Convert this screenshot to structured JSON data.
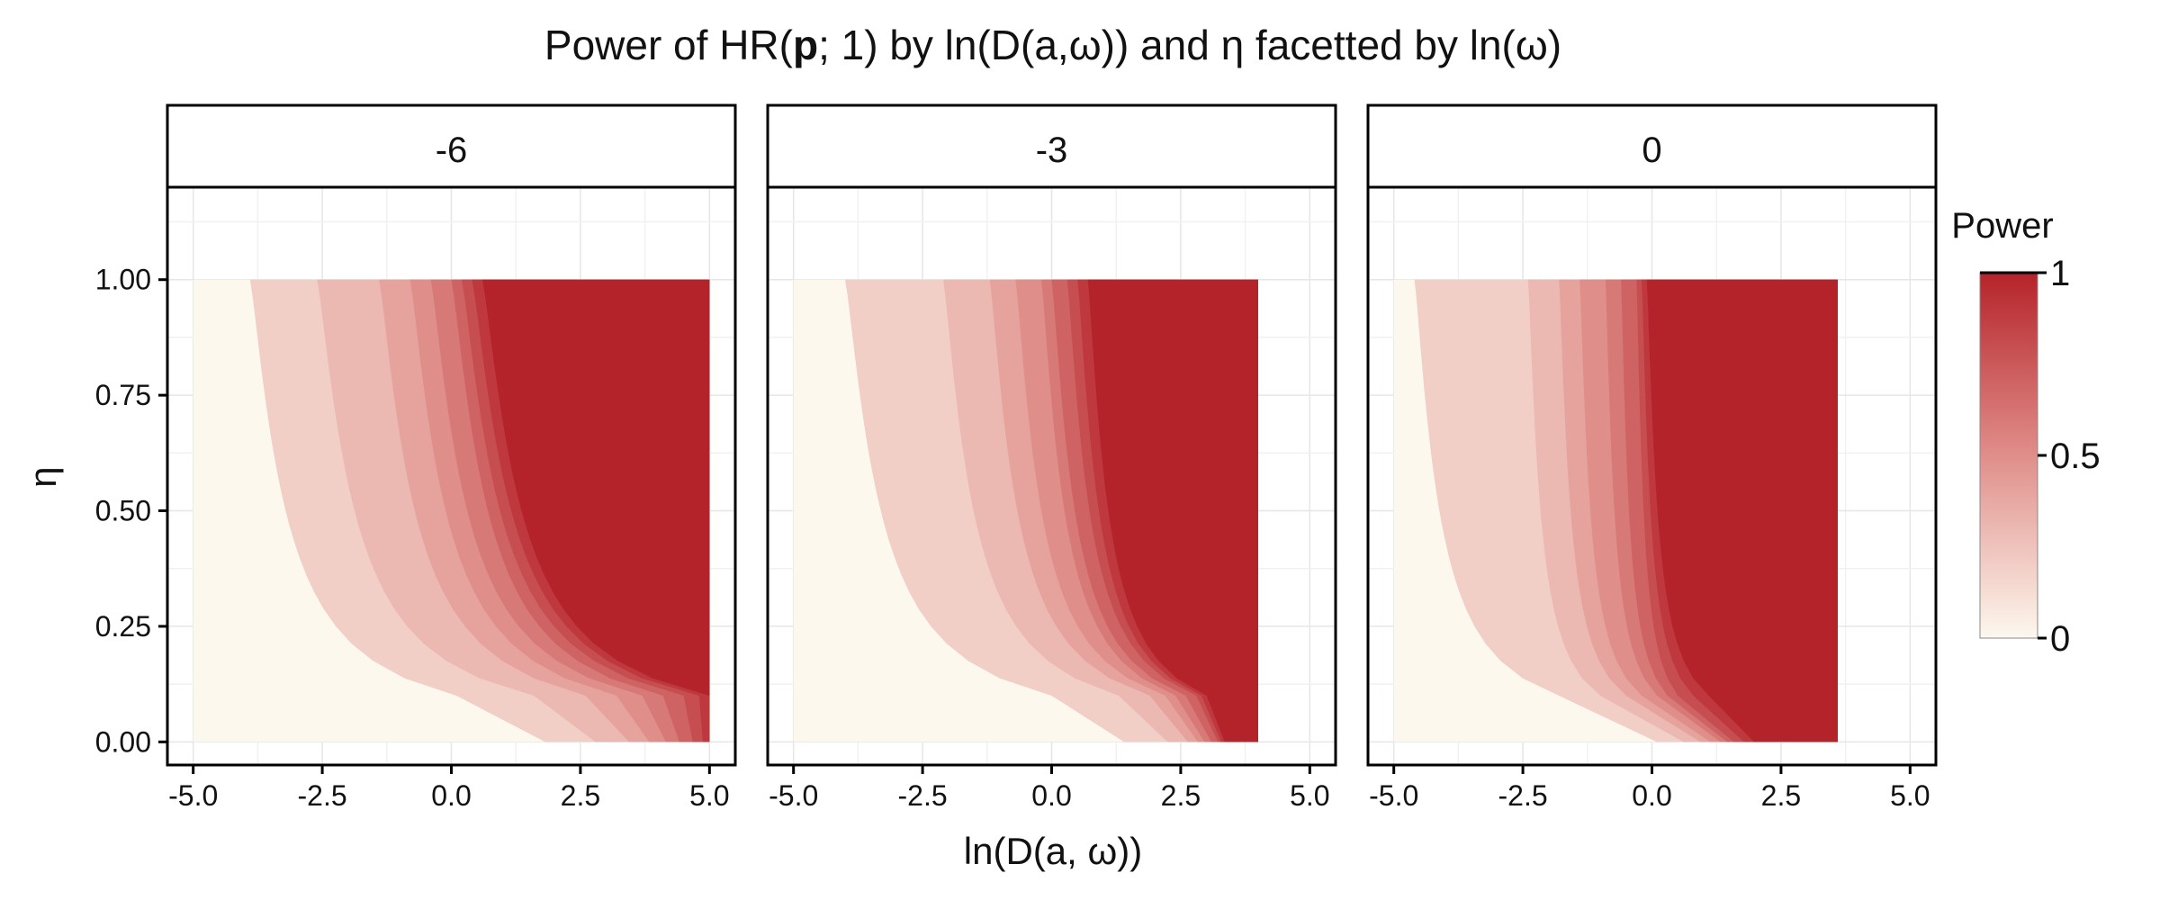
{
  "chart_data": {
    "type": "heatmap",
    "title_parts": {
      "prefix": "Power of HR(",
      "bold": "p",
      "suffix": "; 1) by ln(D(a,ω)) and η facetted by ln(ω)"
    },
    "xlabel": "ln(D(a, ω))",
    "ylabel": "η",
    "xlim": [
      -5.5,
      5.5
    ],
    "ylim": [
      -0.05,
      1.2
    ],
    "x_ticks": [
      -5.0,
      -2.5,
      0.0,
      2.5,
      5.0
    ],
    "x_tick_labels": [
      "-5.0",
      "-2.5",
      "0.0",
      "2.5",
      "5.0"
    ],
    "y_ticks": [
      0.0,
      0.25,
      0.5,
      0.75,
      1.0
    ],
    "y_tick_labels": [
      "0.00",
      "0.25",
      "0.50",
      "0.75",
      "1.00"
    ],
    "legend": {
      "title": "Power",
      "ticks": [
        0,
        0.5,
        1
      ],
      "tick_labels": [
        "0",
        "0.5",
        "1"
      ],
      "low_color": "#fdf8ee",
      "mid_color": "#e08e8a",
      "high_color": "#b5232a"
    },
    "contour_levels": [
      0.1,
      0.2,
      0.3,
      0.4,
      0.5,
      0.6,
      0.7,
      0.8,
      0.9
    ],
    "facets": [
      {
        "label": "-6",
        "x_range": [
          -5.0,
          5.0
        ],
        "y_range": [
          0.0,
          1.0
        ],
        "power_at_eta_1": [
          [
            -3.9,
            0.1
          ],
          [
            -2.6,
            0.2
          ],
          [
            -1.4,
            0.3
          ],
          [
            -0.8,
            0.4
          ],
          [
            -0.4,
            0.5
          ],
          [
            0.0,
            0.6
          ],
          [
            0.2,
            0.7
          ],
          [
            0.4,
            0.8
          ],
          [
            0.6,
            0.9
          ]
        ],
        "power_at_eta_0_1": [
          [
            0.1,
            0.1
          ],
          [
            1.6,
            0.2
          ],
          [
            2.6,
            0.3
          ],
          [
            3.2,
            0.4
          ],
          [
            3.7,
            0.5
          ],
          [
            4.1,
            0.6
          ],
          [
            4.5,
            0.7
          ],
          [
            4.8,
            0.8
          ],
          [
            5.0,
            0.9
          ]
        ]
      },
      {
        "label": "-3",
        "x_range": [
          -5.0,
          4.0
        ],
        "y_range": [
          0.0,
          1.0
        ],
        "power_at_eta_1": [
          [
            -4.0,
            0.1
          ],
          [
            -2.1,
            0.2
          ],
          [
            -1.2,
            0.3
          ],
          [
            -0.7,
            0.4
          ],
          [
            -0.2,
            0.5
          ],
          [
            0.0,
            0.6
          ],
          [
            0.3,
            0.7
          ],
          [
            0.5,
            0.8
          ],
          [
            0.7,
            0.9
          ]
        ],
        "power_at_eta_0_1": [
          [
            0.0,
            0.1
          ],
          [
            1.3,
            0.2
          ],
          [
            1.9,
            0.3
          ],
          [
            2.2,
            0.4
          ],
          [
            2.4,
            0.5
          ],
          [
            2.6,
            0.6
          ],
          [
            2.8,
            0.7
          ],
          [
            2.9,
            0.8
          ],
          [
            3.0,
            0.9
          ]
        ]
      },
      {
        "label": "0",
        "x_range": [
          -5.0,
          3.6
        ],
        "y_range": [
          0.0,
          1.0
        ],
        "power_at_eta_1": [
          [
            -4.6,
            0.1
          ],
          [
            -2.4,
            0.2
          ],
          [
            -1.8,
            0.3
          ],
          [
            -1.4,
            0.4
          ],
          [
            -0.9,
            0.5
          ],
          [
            -0.6,
            0.6
          ],
          [
            -0.3,
            0.7
          ],
          [
            -0.2,
            0.8
          ],
          [
            -0.1,
            0.9
          ]
        ],
        "power_at_eta_0_1": [
          [
            -1.8,
            0.1
          ],
          [
            -1.0,
            0.2
          ],
          [
            -0.5,
            0.3
          ],
          [
            -0.2,
            0.4
          ],
          [
            0.1,
            0.5
          ],
          [
            0.3,
            0.6
          ],
          [
            0.5,
            0.7
          ],
          [
            0.8,
            0.8
          ],
          [
            1.1,
            0.9
          ]
        ]
      }
    ]
  }
}
